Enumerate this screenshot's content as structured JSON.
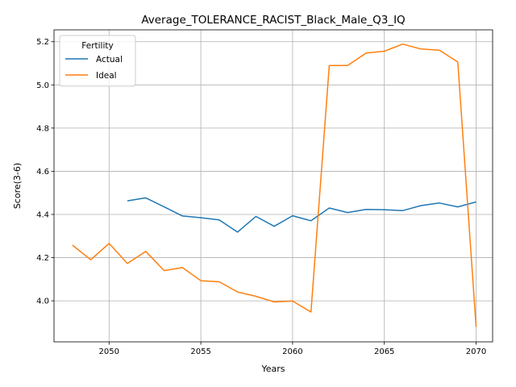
{
  "chart_data": {
    "type": "line",
    "title": "Average_TOLERANCE_RACIST_Black_Male_Q3_IQ",
    "xlabel": "Years",
    "ylabel": "Score(3-6)",
    "xlim": [
      2047,
      2070.9
    ],
    "ylim": [
      3.81,
      5.255
    ],
    "xticks": [
      2050,
      2055,
      2060,
      2065,
      2070
    ],
    "yticks": [
      4.0,
      4.2,
      4.4,
      4.6,
      4.8,
      5.0,
      5.2
    ],
    "grid": true,
    "legend": {
      "title": "Fertility",
      "placement": "top-left"
    },
    "series": [
      {
        "name": "Actual",
        "color": "#1f77b4",
        "x": [
          2051,
          2052,
          2053,
          2054,
          2055,
          2056,
          2057,
          2058,
          2059,
          2060,
          2061,
          2062,
          2063,
          2064,
          2065,
          2066,
          2067,
          2068,
          2069,
          2070
        ],
        "y": [
          4.463,
          4.477,
          4.435,
          4.393,
          4.385,
          4.375,
          4.318,
          4.391,
          4.345,
          4.394,
          4.371,
          4.43,
          4.409,
          4.423,
          4.422,
          4.418,
          4.441,
          4.453,
          4.435,
          4.458
        ]
      },
      {
        "name": "Ideal",
        "color": "#ff7f0e",
        "x": [
          2048,
          2049,
          2050,
          2051,
          2052,
          2053,
          2054,
          2055,
          2056,
          2057,
          2058,
          2059,
          2060,
          2061,
          2062,
          2063,
          2064,
          2065,
          2066,
          2067,
          2068,
          2069,
          2070
        ],
        "y": [
          4.258,
          4.19,
          4.266,
          4.173,
          4.229,
          4.14,
          4.154,
          4.093,
          4.088,
          4.041,
          4.021,
          3.995,
          3.999,
          3.948,
          5.09,
          5.09,
          5.147,
          5.156,
          5.189,
          5.166,
          5.161,
          5.106,
          3.88
        ]
      }
    ]
  }
}
